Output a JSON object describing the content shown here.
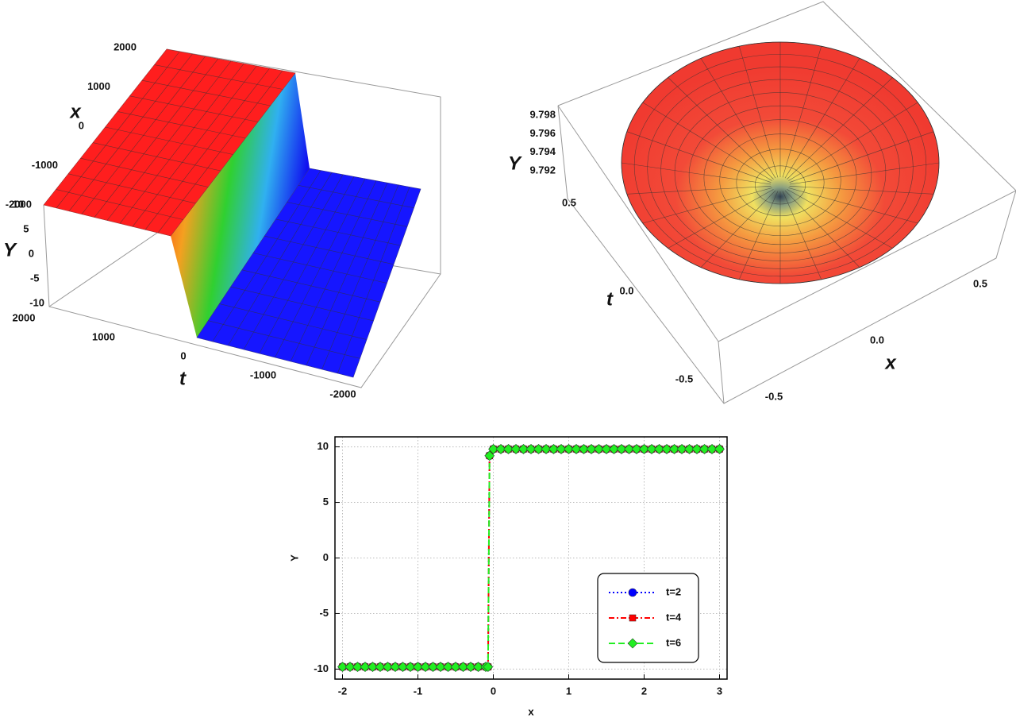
{
  "chart_data": [
    {
      "type": "surface3d",
      "xlabel": "x",
      "ylabel": "Y",
      "tlabel": "t",
      "xlim": [
        -2000,
        2000
      ],
      "xticks": [
        -2000,
        -1000,
        0,
        1000,
        2000
      ],
      "ylim": [
        -10,
        10
      ],
      "yticks": [
        -10,
        -5,
        0,
        5,
        10
      ],
      "tlim": [
        -2000,
        2000
      ],
      "tticks": [
        -2000,
        -1000,
        0,
        1000,
        2000
      ]
    },
    {
      "type": "surface3d",
      "xlabel": "x",
      "ylabel": "Y",
      "tlabel": "t",
      "xlim": [
        -0.5,
        0.5
      ],
      "xticks": [
        -0.5,
        {
          "value": 0,
          "label": "0.0"
        },
        0.5
      ],
      "ylim": [
        9.792,
        9.798
      ],
      "yticks": [
        9.792,
        9.794,
        9.796,
        9.798
      ],
      "tlim": [
        -0.5,
        0.5
      ],
      "tticks": [
        -0.5,
        {
          "value": 0,
          "label": "0.0"
        },
        0.5
      ]
    },
    {
      "type": "line",
      "xlabel": "x",
      "ylabel": "Y",
      "x": [
        -2,
        -1.9,
        -1.8,
        -1.7,
        -1.6,
        -1.5,
        -1.4,
        -1.3,
        -1.2,
        -1.1,
        -1,
        -0.9,
        -0.8,
        -0.7,
        -0.6,
        -0.5,
        -0.4,
        -0.3,
        -0.2,
        -0.1,
        -0.07,
        -0.05,
        0,
        0.1,
        0.2,
        0.3,
        0.4,
        0.5,
        0.6,
        0.7,
        0.8,
        0.9,
        1,
        1.1,
        1.2,
        1.3,
        1.4,
        1.5,
        1.6,
        1.7,
        1.8,
        1.9,
        2,
        2.1,
        2.2,
        2.3,
        2.4,
        2.5,
        2.6,
        2.7,
        2.8,
        2.9,
        3
      ],
      "series": [
        {
          "name": "t=2",
          "color": "#0000ff",
          "linestyle": "dotted",
          "marker": "circle",
          "values": [
            -9.8,
            -9.8,
            -9.8,
            -9.8,
            -9.8,
            -9.8,
            -9.8,
            -9.8,
            -9.8,
            -9.8,
            -9.8,
            -9.8,
            -9.8,
            -9.8,
            -9.8,
            -9.8,
            -9.8,
            -9.8,
            -9.8,
            -9.8,
            -9.8,
            9.2,
            9.8,
            9.8,
            9.8,
            9.8,
            9.8,
            9.8,
            9.8,
            9.8,
            9.8,
            9.8,
            9.8,
            9.8,
            9.8,
            9.8,
            9.8,
            9.8,
            9.8,
            9.8,
            9.8,
            9.8,
            9.8,
            9.8,
            9.8,
            9.8,
            9.8,
            9.8,
            9.8,
            9.8,
            9.8,
            9.8,
            9.8
          ]
        },
        {
          "name": "t=4",
          "color": "#ff0000",
          "linestyle": "dashdot",
          "marker": "square",
          "values": [
            -9.8,
            -9.8,
            -9.8,
            -9.8,
            -9.8,
            -9.8,
            -9.8,
            -9.8,
            -9.8,
            -9.8,
            -9.8,
            -9.8,
            -9.8,
            -9.8,
            -9.8,
            -9.8,
            -9.8,
            -9.8,
            -9.8,
            -9.8,
            -9.8,
            9.2,
            9.8,
            9.8,
            9.8,
            9.8,
            9.8,
            9.8,
            9.8,
            9.8,
            9.8,
            9.8,
            9.8,
            9.8,
            9.8,
            9.8,
            9.8,
            9.8,
            9.8,
            9.8,
            9.8,
            9.8,
            9.8,
            9.8,
            9.8,
            9.8,
            9.8,
            9.8,
            9.8,
            9.8,
            9.8,
            9.8,
            9.8
          ]
        },
        {
          "name": "t=6",
          "color": "#22ee22",
          "linestyle": "dashed",
          "marker": "diamond",
          "values": [
            -9.8,
            -9.8,
            -9.8,
            -9.8,
            -9.8,
            -9.8,
            -9.8,
            -9.8,
            -9.8,
            -9.8,
            -9.8,
            -9.8,
            -9.8,
            -9.8,
            -9.8,
            -9.8,
            -9.8,
            -9.8,
            -9.8,
            -9.8,
            -9.8,
            9.2,
            9.8,
            9.8,
            9.8,
            9.8,
            9.8,
            9.8,
            9.8,
            9.8,
            9.8,
            9.8,
            9.8,
            9.8,
            9.8,
            9.8,
            9.8,
            9.8,
            9.8,
            9.8,
            9.8,
            9.8,
            9.8,
            9.8,
            9.8,
            9.8,
            9.8,
            9.8,
            9.8,
            9.8,
            9.8,
            9.8,
            9.8
          ]
        }
      ],
      "xlim": [
        -2.1,
        3.1
      ],
      "xticks": [
        -2,
        -1,
        0,
        1,
        2,
        3
      ],
      "ylim": [
        -10.9,
        10.9
      ],
      "yticks": [
        -10,
        -5,
        0,
        5,
        10
      ],
      "grid": true,
      "legend": "lower right"
    }
  ]
}
